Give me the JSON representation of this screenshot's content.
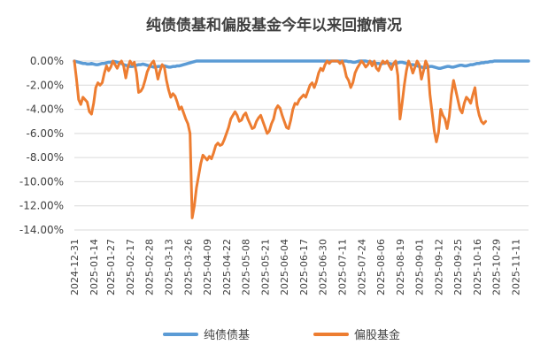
{
  "chart_data": {
    "type": "line",
    "title": "纯债债基和偏股基金今年以来回撤情况",
    "xlabel": "",
    "ylabel": "",
    "ylim": [
      -14,
      0
    ],
    "yticks": [
      "0.00%",
      "-2.00%",
      "-4.00%",
      "-6.00%",
      "-8.00%",
      "-10.00%",
      "-12.00%",
      "-14.00%"
    ],
    "ytick_values": [
      0,
      -2,
      -4,
      -6,
      -8,
      -10,
      -12,
      -14
    ],
    "xticks": [
      "2024-12-31",
      "2025-01-14",
      "2025-01-27",
      "2025-02-17",
      "2025-02-28",
      "2025-03-13",
      "2025-03-26",
      "2025-04-09",
      "2025-04-22",
      "2025-05-08",
      "2025-05-21",
      "2025-06-04",
      "2025-06-17",
      "2025-06-30",
      "2025-07-11",
      "2025-07-24",
      "2025-08-06",
      "2025-08-19",
      "2025-09-01",
      "2025-09-12",
      "2025-09-25",
      "2025-10-16",
      "2025-10-29",
      "2025-11-11"
    ],
    "xtick_index": [
      0,
      9,
      17,
      26,
      35,
      44,
      53,
      62,
      71,
      80,
      89,
      98,
      107,
      116,
      125,
      134,
      143,
      152,
      161,
      170,
      179,
      188,
      197,
      206
    ],
    "grid": true,
    "legend": "bottom",
    "series": [
      {
        "name": "纯债债基",
        "color": "#5B9BD5",
        "values": [
          0,
          -0.05,
          -0.1,
          -0.15,
          -0.2,
          -0.2,
          -0.25,
          -0.25,
          -0.2,
          -0.25,
          -0.3,
          -0.3,
          -0.25,
          -0.2,
          -0.2,
          -0.15,
          -0.1,
          -0.1,
          -0.05,
          -0.05,
          -0.1,
          -0.15,
          -0.2,
          -0.3,
          -0.35,
          -0.4,
          -0.45,
          -0.45,
          -0.4,
          -0.35,
          -0.3,
          -0.3,
          -0.25,
          -0.3,
          -0.35,
          -0.4,
          -0.45,
          -0.5,
          -0.5,
          -0.45,
          -0.45,
          -0.4,
          -0.4,
          -0.45,
          -0.5,
          -0.5,
          -0.45,
          -0.45,
          -0.4,
          -0.4,
          -0.35,
          -0.3,
          -0.25,
          -0.2,
          -0.15,
          -0.1,
          -0.05,
          0,
          0,
          0,
          0,
          0,
          0,
          0,
          0,
          0,
          0,
          0,
          0,
          0,
          0,
          0,
          0,
          0,
          0,
          0,
          0,
          0,
          0,
          0,
          0,
          0,
          0,
          0,
          0,
          0,
          0,
          0,
          0,
          0,
          0,
          0,
          0,
          0,
          0,
          0,
          0,
          0,
          0,
          0,
          0,
          0,
          0,
          0,
          0,
          0,
          0,
          0,
          0,
          0,
          0,
          0,
          0,
          0,
          0,
          0,
          0,
          0,
          0,
          0,
          0,
          0,
          0,
          0,
          0,
          0,
          0,
          0,
          -0.05,
          -0.05,
          -0.1,
          -0.1,
          -0.05,
          0,
          0,
          0,
          0,
          -0.05,
          -0.05,
          -0.1,
          -0.15,
          -0.2,
          -0.2,
          -0.25,
          -0.2,
          -0.15,
          -0.15,
          -0.2,
          -0.25,
          -0.25,
          -0.2,
          -0.15,
          -0.1,
          -0.1,
          -0.15,
          -0.2,
          -0.25,
          -0.3,
          -0.3,
          -0.35,
          -0.4,
          -0.45,
          -0.5,
          -0.55,
          -0.55,
          -0.5,
          -0.45,
          -0.45,
          -0.5,
          -0.55,
          -0.6,
          -0.6,
          -0.55,
          -0.5,
          -0.45,
          -0.45,
          -0.5,
          -0.5,
          -0.45,
          -0.4,
          -0.35,
          -0.35,
          -0.4,
          -0.4,
          -0.35,
          -0.3,
          -0.3,
          -0.25,
          -0.2,
          -0.2,
          -0.15,
          -0.15,
          -0.1,
          -0.1,
          -0.05,
          -0.05,
          0,
          0,
          0,
          0,
          0,
          0,
          0,
          0,
          0,
          0,
          0,
          0,
          0,
          0,
          0,
          0,
          0
        ]
      },
      {
        "name": "偏股基金",
        "color": "#ED7D31",
        "values": [
          0,
          -1.5,
          -3.2,
          -3.6,
          -3.0,
          -3.2,
          -3.4,
          -4.2,
          -4.4,
          -3.5,
          -2.2,
          -1.8,
          -2.0,
          -1.8,
          -1.0,
          -0.4,
          -0.8,
          -0.5,
          0,
          -0.3,
          -0.6,
          -0.2,
          0,
          -0.4,
          -1.4,
          -0.5,
          0,
          -0.3,
          -0.1,
          -1.0,
          -2.6,
          -2.5,
          -2.2,
          -1.6,
          -0.9,
          -0.5,
          -0.2,
          0,
          -0.6,
          -1.5,
          -0.8,
          -0.3,
          -0.5,
          -1.6,
          -2.4,
          -3.0,
          -2.7,
          -2.9,
          -3.4,
          -4.0,
          -3.8,
          -4.3,
          -4.8,
          -5.2,
          -6.0,
          -13.0,
          -12.0,
          -10.5,
          -9.5,
          -8.5,
          -7.8,
          -8.0,
          -8.2,
          -7.9,
          -8.1,
          -7.6,
          -7.0,
          -6.8,
          -7.0,
          -6.9,
          -6.5,
          -6.0,
          -5.5,
          -4.8,
          -4.5,
          -4.2,
          -4.5,
          -5.0,
          -4.9,
          -4.5,
          -4.3,
          -4.8,
          -5.2,
          -5.6,
          -5.5,
          -5.0,
          -4.7,
          -4.5,
          -5.0,
          -5.5,
          -6.0,
          -5.8,
          -5.2,
          -4.8,
          -4.0,
          -3.7,
          -3.9,
          -4.5,
          -5.0,
          -5.5,
          -5.6,
          -4.9,
          -4.0,
          -3.5,
          -3.6,
          -3.2,
          -3.0,
          -2.8,
          -3.0,
          -2.5,
          -2.0,
          -1.8,
          -2.2,
          -1.7,
          -1.0,
          -0.6,
          -0.8,
          -0.3,
          0,
          -0.2,
          0,
          0,
          0,
          0,
          -0.2,
          0,
          -0.5,
          -1.3,
          -1.6,
          -2.2,
          -1.8,
          -1.0,
          -0.6,
          -0.3,
          0,
          -0.2,
          -0.5,
          -0.3,
          0,
          -0.4,
          0,
          -0.6,
          -0.8,
          -0.3,
          0,
          -0.2,
          0,
          -0.4,
          -0.7,
          -0.2,
          0,
          -1.2,
          -4.8,
          -3.5,
          -2.0,
          -0.8,
          0,
          -0.4,
          -1.0,
          -0.5,
          0,
          -0.3,
          -1.5,
          -0.8,
          0,
          -0.4,
          -2.8,
          -4.3,
          -5.8,
          -6.7,
          -5.9,
          -4.0,
          -4.5,
          -4.8,
          -5.6,
          -4.6,
          -2.8,
          -1.6,
          -2.4,
          -3.2,
          -4.0,
          -4.3,
          -3.5,
          -3.0,
          -3.2,
          -3.5,
          -2.8,
          -2.2,
          -3.7,
          -4.5,
          -5.0,
          -5.2,
          -5.0
        ]
      }
    ]
  }
}
